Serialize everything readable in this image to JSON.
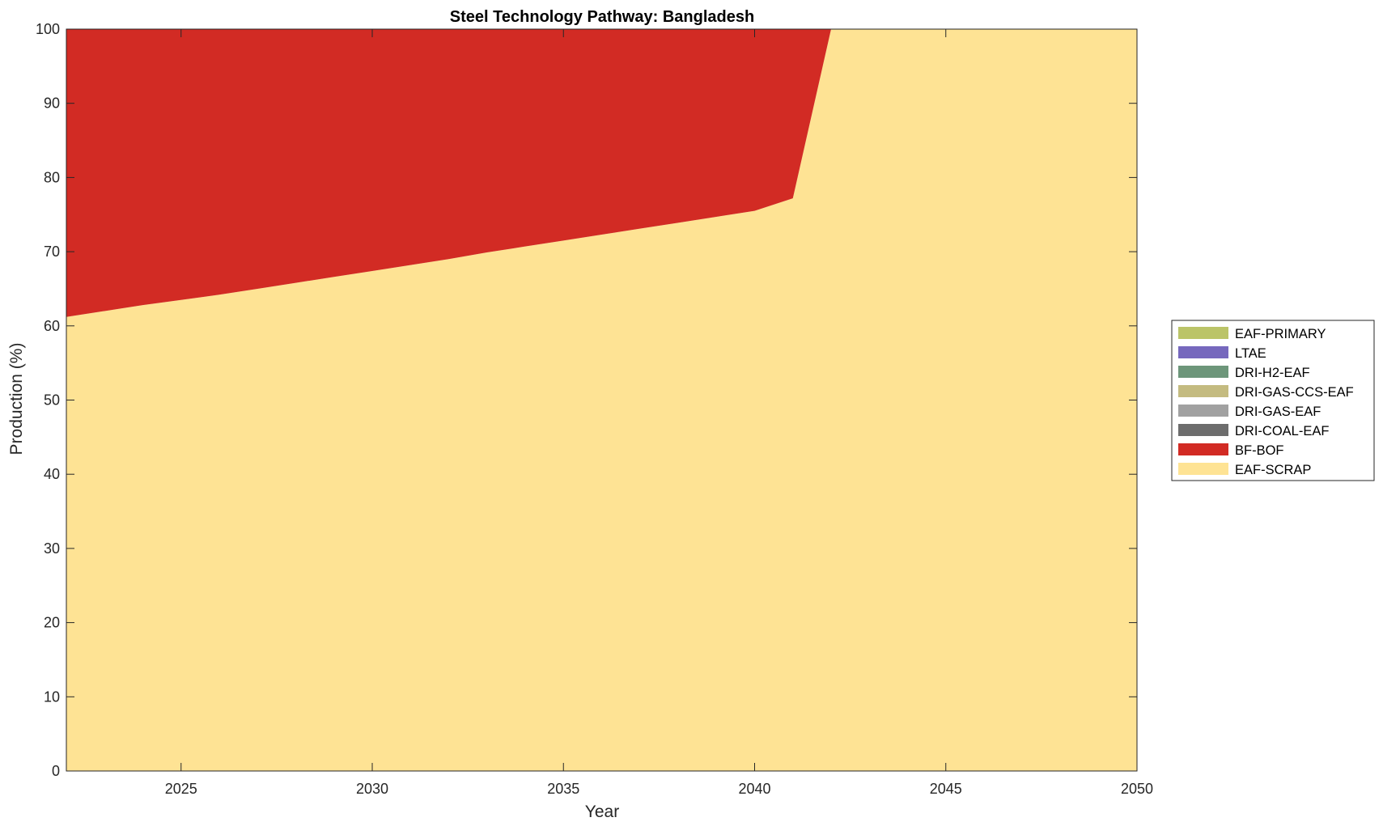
{
  "chart_data": {
    "type": "area",
    "stacked": true,
    "title": "Steel Technology Pathway: Bangladesh",
    "xlabel": "Year",
    "ylabel": "Production (%)",
    "xlim": [
      2022,
      2050
    ],
    "ylim": [
      0,
      100
    ],
    "xticks": [
      2025,
      2030,
      2035,
      2040,
      2045,
      2050
    ],
    "yticks": [
      0,
      10,
      20,
      30,
      40,
      50,
      60,
      70,
      80,
      90,
      100
    ],
    "grid": false,
    "legend_position": "right",
    "x": [
      2022,
      2023,
      2024,
      2025,
      2026,
      2027,
      2028,
      2029,
      2030,
      2031,
      2032,
      2033,
      2034,
      2035,
      2036,
      2037,
      2038,
      2039,
      2040,
      2041,
      2042,
      2043,
      2044,
      2045,
      2046,
      2047,
      2048,
      2049,
      2050
    ],
    "series": [
      {
        "name": "EAF-SCRAP",
        "color": "#FEE394",
        "values": [
          61.2,
          62.0,
          62.8,
          63.5,
          64.2,
          65.0,
          65.8,
          66.6,
          67.4,
          68.2,
          69.0,
          69.9,
          70.7,
          71.5,
          72.3,
          73.1,
          73.9,
          74.7,
          75.5,
          77.2,
          100,
          100,
          100,
          100,
          100,
          100,
          100,
          100,
          100
        ]
      },
      {
        "name": "BF-BOF",
        "color": "#D22B24",
        "values": [
          38.8,
          38.0,
          37.2,
          36.5,
          35.8,
          35.0,
          34.2,
          33.4,
          32.6,
          31.8,
          31.0,
          30.1,
          29.3,
          28.5,
          27.7,
          26.9,
          26.1,
          25.3,
          24.5,
          22.8,
          0,
          0,
          0,
          0,
          0,
          0,
          0,
          0,
          0
        ]
      },
      {
        "name": "DRI-COAL-EAF",
        "color": "#6D6D6D",
        "values": [
          0,
          0,
          0,
          0,
          0,
          0,
          0,
          0,
          0,
          0,
          0,
          0,
          0,
          0,
          0,
          0,
          0,
          0,
          0,
          0,
          0,
          0,
          0,
          0,
          0,
          0,
          0,
          0,
          0
        ]
      },
      {
        "name": "DRI-GAS-EAF",
        "color": "#A1A1A1",
        "values": [
          0,
          0,
          0,
          0,
          0,
          0,
          0,
          0,
          0,
          0,
          0,
          0,
          0,
          0,
          0,
          0,
          0,
          0,
          0,
          0,
          0,
          0,
          0,
          0,
          0,
          0,
          0,
          0,
          0
        ]
      },
      {
        "name": "DRI-GAS-CCS-EAF",
        "color": "#C4BB80",
        "values": [
          0,
          0,
          0,
          0,
          0,
          0,
          0,
          0,
          0,
          0,
          0,
          0,
          0,
          0,
          0,
          0,
          0,
          0,
          0,
          0,
          0,
          0,
          0,
          0,
          0,
          0,
          0,
          0,
          0
        ]
      },
      {
        "name": "DRI-H2-EAF",
        "color": "#6D967A",
        "values": [
          0,
          0,
          0,
          0,
          0,
          0,
          0,
          0,
          0,
          0,
          0,
          0,
          0,
          0,
          0,
          0,
          0,
          0,
          0,
          0,
          0,
          0,
          0,
          0,
          0,
          0,
          0,
          0,
          0
        ]
      },
      {
        "name": "LTAE",
        "color": "#7668BD",
        "values": [
          0,
          0,
          0,
          0,
          0,
          0,
          0,
          0,
          0,
          0,
          0,
          0,
          0,
          0,
          0,
          0,
          0,
          0,
          0,
          0,
          0,
          0,
          0,
          0,
          0,
          0,
          0,
          0,
          0
        ]
      },
      {
        "name": "EAF-PRIMARY",
        "color": "#BBC468",
        "values": [
          0,
          0,
          0,
          0,
          0,
          0,
          0,
          0,
          0,
          0,
          0,
          0,
          0,
          0,
          0,
          0,
          0,
          0,
          0,
          0,
          0,
          0,
          0,
          0,
          0,
          0,
          0,
          0,
          0
        ]
      }
    ],
    "legend_order": [
      "EAF-PRIMARY",
      "LTAE",
      "DRI-H2-EAF",
      "DRI-GAS-CCS-EAF",
      "DRI-GAS-EAF",
      "DRI-COAL-EAF",
      "BF-BOF",
      "EAF-SCRAP"
    ]
  }
}
